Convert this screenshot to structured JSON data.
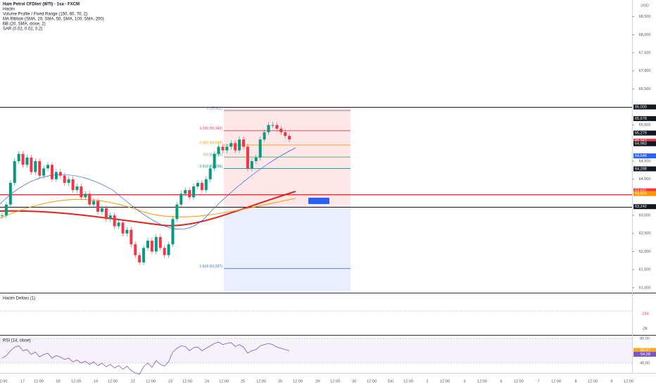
{
  "header": {
    "title": "Ham Petrol CFDleri (WTI) · 1sa · FXCM",
    "indicators": [
      "Hacim",
      "Volume Profile / Fixed Range (150, 60, 70, 2)",
      "MA Ribbon (SMA, 20, SMA, 50, SMA, 100, SMA, 200)",
      "BB (20, SMA, close, 2)",
      "SAR (0.02, 0.02, 0.2)"
    ],
    "currency": "USD"
  },
  "chart_data": {
    "type": "candlestick",
    "ylim": [
      60.88,
      68.96
    ],
    "yticks": [
      {
        "value": 68.5,
        "label": "68,500"
      },
      {
        "value": 68,
        "label": "68,000"
      },
      {
        "value": 67.5,
        "label": "67,500"
      },
      {
        "value": 67,
        "label": "67,000"
      },
      {
        "value": 66.5,
        "label": "66,500"
      },
      {
        "value": 65.5,
        "label": "65,500"
      },
      {
        "value": 64.5,
        "label": "64,500"
      },
      {
        "value": 64,
        "label": "64,000"
      },
      {
        "value": 63,
        "label": "63,000"
      },
      {
        "value": 62.5,
        "label": "62,500"
      },
      {
        "value": 62,
        "label": "62,000"
      },
      {
        "value": 61.5,
        "label": "61,500"
      },
      {
        "value": 61,
        "label": "61,000"
      }
    ],
    "price_labels": [
      {
        "value": 66,
        "label": "66,000",
        "color": "#131722"
      },
      {
        "value": 65.678,
        "label": "65,678",
        "color": "#131722"
      },
      {
        "value": 65.279,
        "label": "65,279",
        "color": "#131722"
      },
      {
        "value": 65.052,
        "label": "65,052",
        "color": "#f23645"
      },
      {
        "value": 64.983,
        "label": "64,983",
        "color": "#131722"
      },
      {
        "value": 64.646,
        "label": "64,646",
        "color": "#2962ff"
      },
      {
        "value": 64.288,
        "label": "64,288",
        "color": "#131722"
      },
      {
        "value": 63.681,
        "label": "63,681",
        "color": "#f23645"
      },
      {
        "value": 63.604,
        "label": "63,604",
        "color": "#ff9800"
      },
      {
        "value": 63.242,
        "label": "63,242",
        "color": "#131722"
      }
    ],
    "fib_levels": [
      {
        "value": 65.902,
        "label": "0 (65,902)",
        "color": "#787b86"
      },
      {
        "value": 65.342,
        "label": "0.236 (65,342)",
        "color": "#f23645"
      },
      {
        "value": 64.948,
        "label": "0.382 (64,948)",
        "color": "#ff9800"
      },
      {
        "value": 64.615,
        "label": "0.5 (64,615)",
        "color": "#4caf50"
      },
      {
        "value": 64.296,
        "label": "0.618 (64,296)",
        "color": "#089981"
      },
      {
        "value": 61.527,
        "label": "1.618 (61,527)",
        "color": "#2962ff"
      }
    ],
    "closes": [
      63.0,
      63.3,
      63.9,
      64.5,
      64.7,
      64.4,
      64.6,
      64.2,
      64.5,
      64.1,
      64.3,
      64.4,
      64.0,
      64.2,
      64.1,
      63.9,
      64.0,
      63.7,
      63.8,
      63.5,
      63.6,
      63.3,
      63.4,
      63.1,
      63.2,
      62.9,
      63.0,
      62.7,
      62.8,
      62.5,
      62.6,
      62.2,
      61.9,
      61.7,
      62.1,
      62.3,
      62.0,
      62.4,
      62.1,
      61.9,
      62.2,
      62.9,
      63.3,
      63.6,
      63.7,
      63.5,
      63.8,
      63.9,
      63.7,
      64.0,
      64.3,
      64.7,
      64.9,
      64.8,
      64.9,
      65.0,
      64.8,
      65.1,
      64.9,
      64.3,
      64.5,
      64.6,
      65.1,
      65.3,
      65.5,
      65.5,
      65.4,
      65.3,
      65.2,
      65.1
    ],
    "time_labels": [
      "2:00",
      "17",
      "12:00",
      "18",
      "12:00",
      "19",
      "12:00",
      "22",
      "12:00",
      "23",
      "12:00",
      "24",
      "12:00",
      "25",
      "12:00",
      "26",
      "12:00",
      "29",
      "12:00",
      "30",
      "12:00",
      "Eki",
      "12:00",
      "2",
      "12:00",
      "3",
      "12:00",
      "6",
      "12:00",
      "7",
      "12:00",
      "8",
      "12:00",
      "9",
      "12:00"
    ]
  },
  "delta_pane": {
    "title": "Hacim Deltası (1)",
    "labels": [
      {
        "value": -234,
        "label": "-234"
      },
      {
        "value": -2000,
        "label": "-2K"
      }
    ]
  },
  "rsi_pane": {
    "title": "RSI (14, close)",
    "ylim": [
      24,
      83.4
    ],
    "yticks": [
      {
        "value": 80,
        "label": "80,00"
      },
      {
        "value": 40,
        "label": "40,00"
      }
    ],
    "current": [
      {
        "value": 60.47,
        "label": "60,47"
      },
      {
        "value": 54.28,
        "label": "54,28"
      }
    ],
    "values": [
      48,
      52,
      60,
      66,
      68,
      60,
      62,
      54,
      58,
      50,
      54,
      56,
      48,
      52,
      50,
      46,
      48,
      42,
      45,
      40,
      43,
      38,
      42,
      36,
      40,
      34,
      38,
      32,
      36,
      30,
      35,
      28,
      24,
      22,
      34,
      40,
      33,
      44,
      38,
      35,
      42,
      58,
      64,
      68,
      67,
      60,
      65,
      66,
      60,
      64,
      68,
      72,
      74,
      70,
      72,
      73,
      67,
      70,
      66,
      56,
      60,
      62,
      68,
      70,
      72,
      70,
      66,
      64,
      62,
      60
    ]
  }
}
